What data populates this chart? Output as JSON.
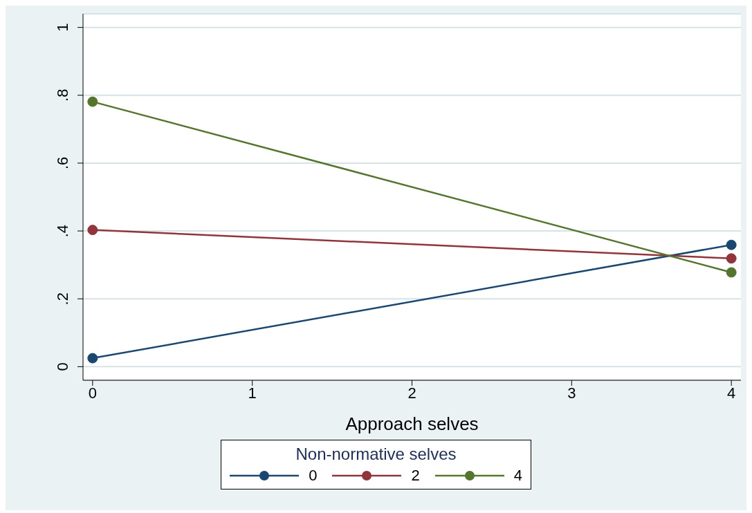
{
  "chart_data": {
    "type": "line",
    "xlabel": "Approach selves",
    "legend_title": "Non-normative selves",
    "x": [
      0,
      4
    ],
    "series": [
      {
        "name": "0",
        "color": "#1a476f",
        "values": [
          0.025,
          0.359
        ]
      },
      {
        "name": "2",
        "color": "#90353b",
        "values": [
          0.403,
          0.319
        ]
      },
      {
        "name": "4",
        "color": "#55752f",
        "values": [
          0.781,
          0.278
        ]
      }
    ],
    "xlim": [
      -0.06,
      4.06
    ],
    "xticks": [
      0,
      1,
      2,
      3,
      4
    ],
    "ylim": [
      -0.04,
      1.04
    ],
    "yticks": [
      0,
      {
        "value": 0.2,
        "label": ".2"
      },
      {
        "value": 0.4,
        "label": ".4"
      },
      {
        "value": 0.6,
        "label": ".6"
      },
      {
        "value": 0.8,
        "label": ".8"
      },
      1
    ],
    "grid": "y",
    "legend": "bottom",
    "marker": "circle",
    "line_style": "solid"
  }
}
